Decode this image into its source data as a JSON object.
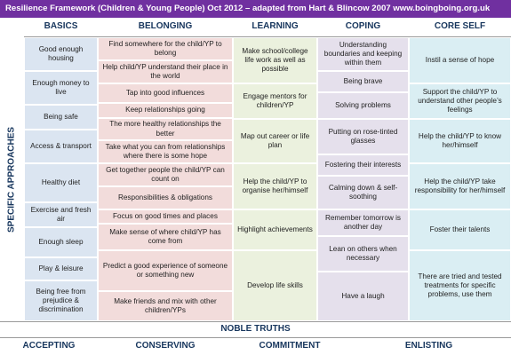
{
  "title": "Resilience Framework (Children & Young People) Oct 2012 – adapted from Hart & Blincow 2007 www.boingboing.org.uk",
  "side_label": "SPECIFIC APPROACHES",
  "noble_truths": "NOBLE TRUTHS",
  "truths": [
    "ACCEPTING",
    "CONSERVING",
    "COMMITMENT",
    "ENLISTING"
  ],
  "columns": [
    {
      "header": "BASICS",
      "cells": [
        "Good enough housing",
        "Enough money to live",
        "Being safe",
        "Access & transport",
        "Healthy diet",
        "Exercise and fresh air",
        "Enough sleep",
        "Play & leisure",
        "Being free from prejudice & discrimination"
      ]
    },
    {
      "header": "BELONGING",
      "cells": [
        "Find somewhere for the child/YP to belong",
        "Help child/YP understand their place in the world",
        "Tap into good influences",
        "Keep relationships going",
        "The more healthy relationships the better",
        "Take what you can from relationships where there is some hope",
        "Get together people the child/YP can count on",
        "Responsibilities & obligations",
        "Focus on good times and places",
        "Make sense of where child/YP has come from",
        "Predict a good experience of someone or something new",
        "Make friends and mix with other children/YPs"
      ]
    },
    {
      "header": "LEARNING",
      "cells": [
        "Make school/college life work as well as possible",
        "Engage mentors for children/YP",
        "Map out career or life plan",
        "Help the child/YP to organise her/himself",
        "Highlight achievements",
        "Develop life skills"
      ]
    },
    {
      "header": "COPING",
      "cells": [
        "Understanding boundaries and keeping within them",
        "Being brave",
        "Solving problems",
        "Putting on rose-tinted glasses",
        "Fostering their interests",
        "Calming down & self-soothing",
        "Remember tomorrow is another day",
        "Lean on others when necessary",
        "Have a laugh"
      ]
    },
    {
      "header": "CORE SELF",
      "cells": [
        "Instil a sense of hope",
        "Support the child/YP to understand other people’s feelings",
        "Help the child/YP to know her/himself",
        "Help the child/YP take responsibility for her/himself",
        "Foster their talents",
        "There are tried and tested treatments for specific problems, use them"
      ]
    }
  ]
}
